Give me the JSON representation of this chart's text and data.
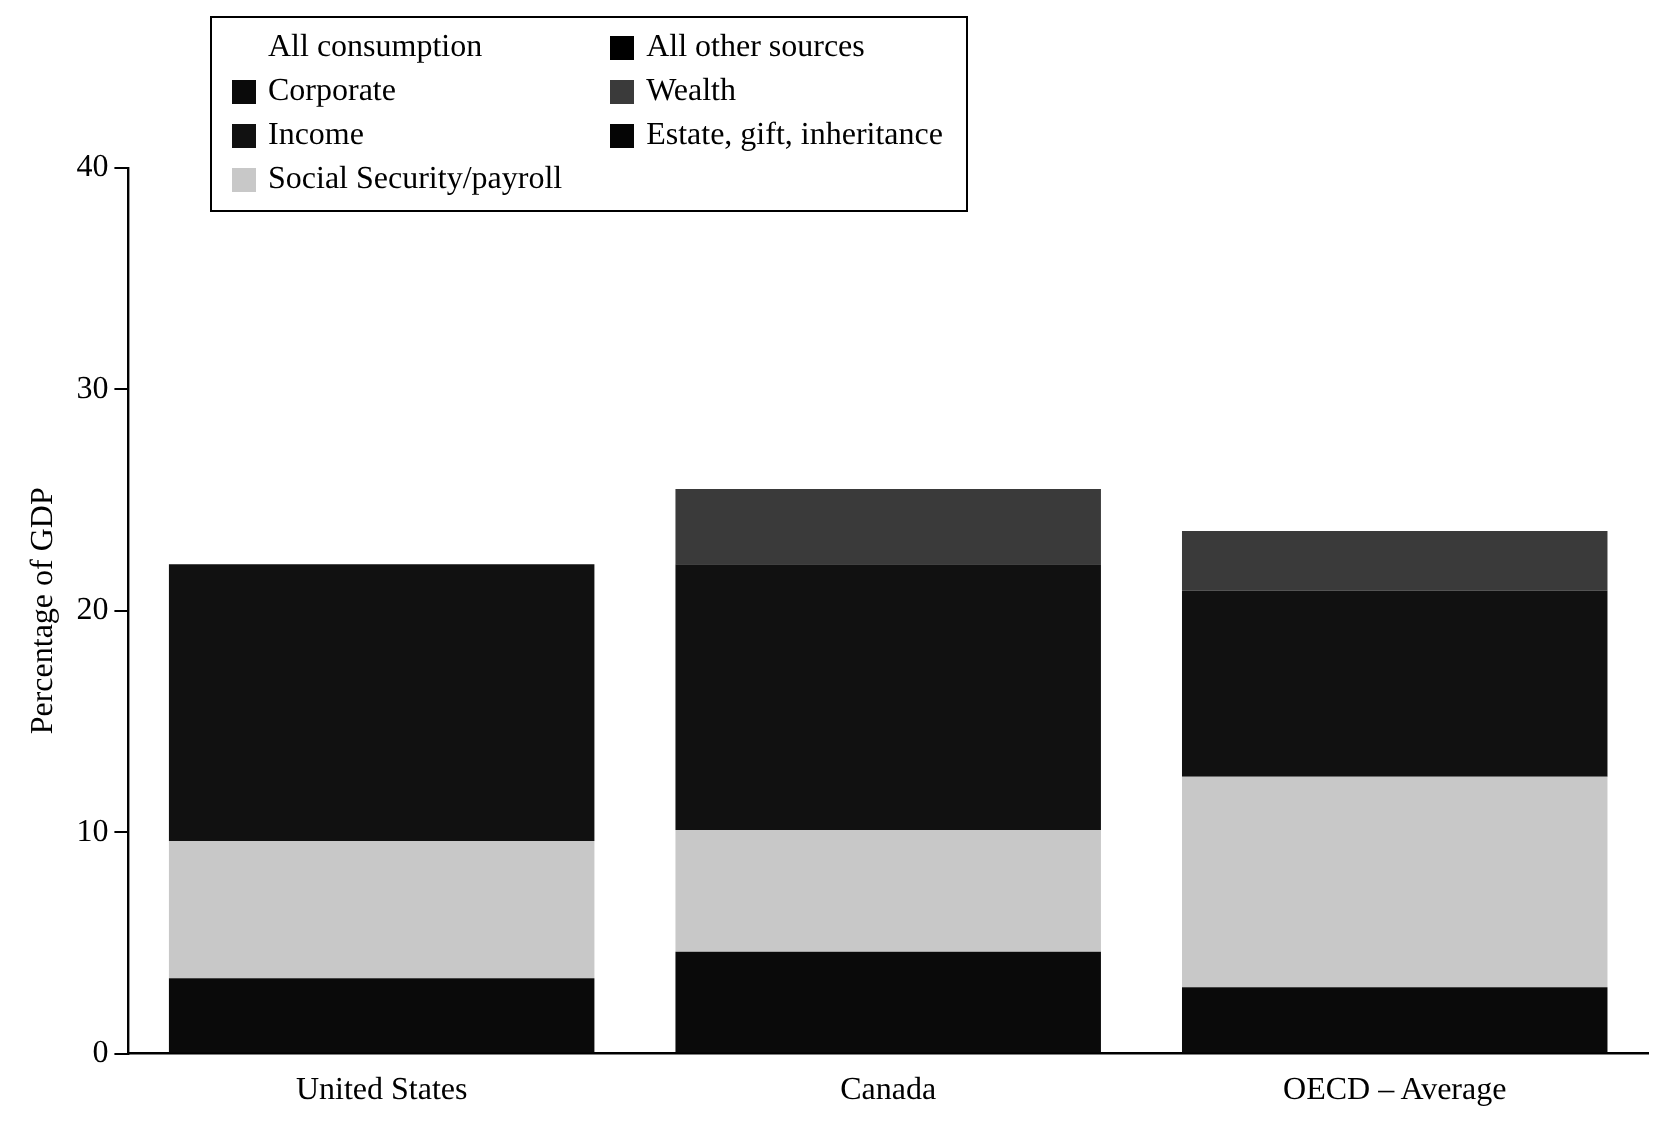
{
  "chart_data": {
    "type": "bar",
    "stacked": true,
    "ylabel": "Percentage of GDP",
    "categories": [
      "United States",
      "Canada",
      "OECD – Average"
    ],
    "series": [
      {
        "name": "All consumption",
        "values": [
          null,
          null,
          null
        ]
      },
      {
        "name": "All other sources",
        "color": "#000000",
        "values": [
          null,
          null,
          null
        ]
      },
      {
        "name": "Corporate",
        "color": "#0a0a0a",
        "values": [
          3.4,
          4.6,
          3.0
        ]
      },
      {
        "name": "Wealth",
        "color": "#3a3a3a",
        "values": [
          null,
          3.4,
          2.7
        ]
      },
      {
        "name": "Income",
        "color": "#111111",
        "values": [
          12.5,
          12.0,
          8.4
        ]
      },
      {
        "name": "Estate, gift, inheritance",
        "color": "#050505",
        "values": [
          null,
          null,
          null
        ]
      },
      {
        "name": "Social Security/payroll",
        "color": "#c8c8c8",
        "values": [
          6.2,
          5.5,
          9.5
        ]
      }
    ],
    "ylim": [
      0,
      40
    ],
    "yticks": [
      0,
      10,
      20,
      30,
      40
    ],
    "grid": false,
    "legend": "top left"
  }
}
